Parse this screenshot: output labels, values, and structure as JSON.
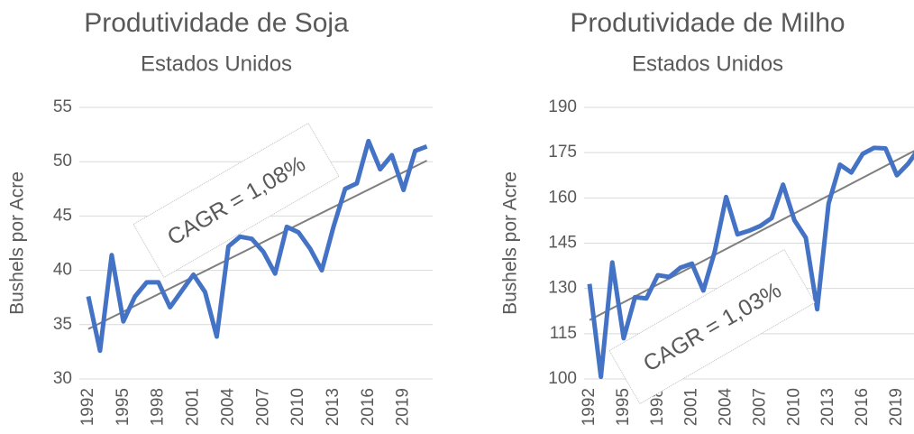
{
  "chart_data": [
    {
      "type": "line",
      "title": "Produtividade de Soja",
      "subtitle": "Estados Unidos",
      "y_label": "Bushels por Acre",
      "categories": [
        "1992",
        null,
        null,
        "1995",
        null,
        null,
        "1998",
        null,
        null,
        "2001",
        null,
        null,
        "2004",
        null,
        null,
        "2007",
        null,
        null,
        "2010",
        null,
        null,
        "2013",
        null,
        null,
        "2016",
        null,
        null,
        "2019",
        null,
        null
      ],
      "series": [
        {
          "color": "#4472c4",
          "values": [
            37.6,
            32.6,
            41.4,
            35.3,
            37.6,
            38.9,
            38.9,
            36.6,
            38.1,
            39.6,
            38.0,
            33.9,
            42.2,
            43.1,
            42.9,
            41.7,
            39.7,
            44.0,
            43.5,
            42.0,
            40.0,
            44.0,
            47.5,
            48.0,
            51.9,
            49.3,
            50.6,
            47.4,
            51.0,
            51.4
          ]
        }
      ],
      "trendline": {
        "color": "#7f7f7f",
        "start": 34.6,
        "end": 50.1
      },
      "annotation": "CAGR = 1,08%",
      "ylim": [
        30,
        55
      ],
      "yticks": [
        30,
        35,
        40,
        45,
        50,
        55
      ],
      "grid": true
    },
    {
      "type": "line",
      "title": "Produtividade de Milho",
      "subtitle": "Estados Unidos",
      "y_label": "Bushels por Acre",
      "categories": [
        "1992",
        null,
        null,
        "1995",
        null,
        null,
        "1998",
        null,
        null,
        "2001",
        null,
        null,
        "2004",
        null,
        null,
        "2007",
        null,
        null,
        "2010",
        null,
        null,
        "2013",
        null,
        null,
        "2016",
        null,
        null,
        "2019",
        null,
        null
      ],
      "series": [
        {
          "color": "#4472c4",
          "values": [
            131.5,
            100.7,
            138.6,
            113.5,
            127.1,
            126.7,
            134.4,
            133.8,
            136.9,
            138.2,
            129.3,
            142.2,
            160.3,
            147.9,
            149.1,
            150.7,
            153.3,
            164.4,
            152.6,
            146.8,
            123.1,
            158.1,
            171.0,
            168.4,
            174.6,
            176.6,
            176.4,
            167.5,
            171.4,
            176.7
          ]
        }
      ],
      "trendline": {
        "color": "#7f7f7f",
        "start": 119.5,
        "end": 176.5
      },
      "annotation": "CAGR = 1,03%",
      "ylim": [
        100,
        190
      ],
      "yticks": [
        100,
        115,
        130,
        145,
        160,
        175,
        190
      ],
      "grid": true
    }
  ]
}
